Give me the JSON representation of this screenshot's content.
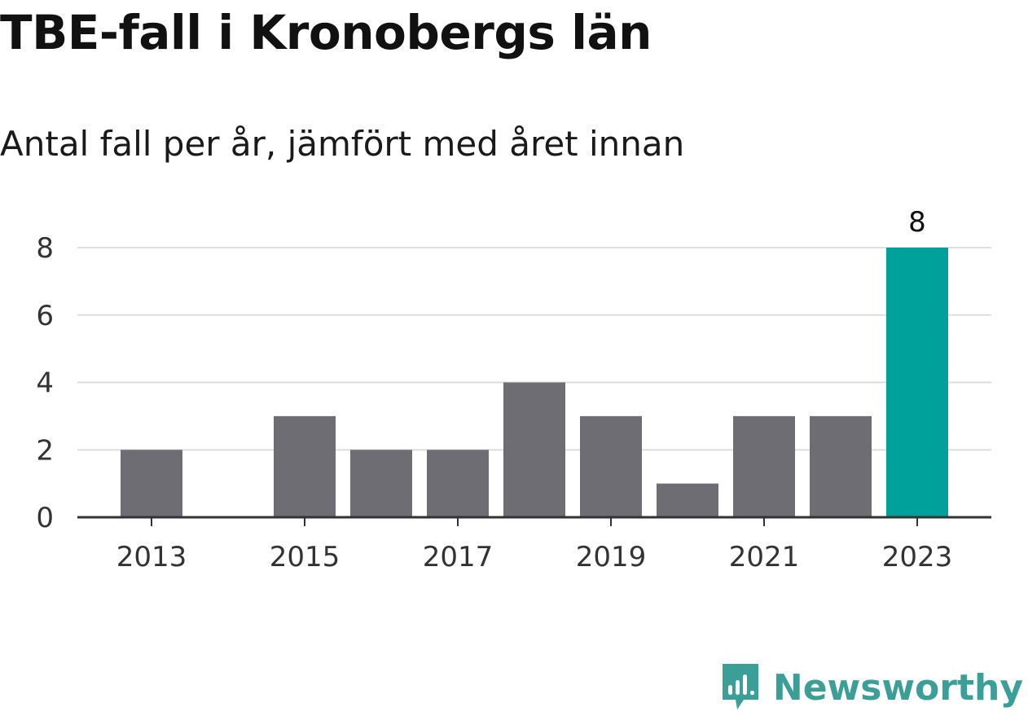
{
  "title": "TBE-fall i Kronobergs län",
  "subtitle": "Antal fall per år, jämfört med året innan",
  "brand": {
    "name": "Newsworthy",
    "color": "#3b9f98"
  },
  "colors": {
    "bar": "#6e6d74",
    "highlight": "#00a19a",
    "grid": "#dddddd",
    "axis": "#333333"
  },
  "chart_data": {
    "type": "bar",
    "categories": [
      "2013",
      "2014",
      "2015",
      "2016",
      "2017",
      "2018",
      "2019",
      "2020",
      "2021",
      "2022",
      "2023"
    ],
    "values": [
      2,
      0,
      3,
      2,
      2,
      4,
      3,
      1,
      3,
      3,
      8
    ],
    "x_tick_labels": [
      "2013",
      "2015",
      "2017",
      "2019",
      "2021",
      "2023"
    ],
    "y_ticks": [
      0,
      2,
      4,
      6,
      8
    ],
    "ylim": [
      0,
      8
    ],
    "highlight_category": "2023",
    "data_labels": [
      {
        "category": "2023",
        "text": "8"
      }
    ],
    "grid": true,
    "legend": "none",
    "title": "TBE-fall i Kronobergs län",
    "subtitle": "Antal fall per år, jämfört med året innan"
  }
}
